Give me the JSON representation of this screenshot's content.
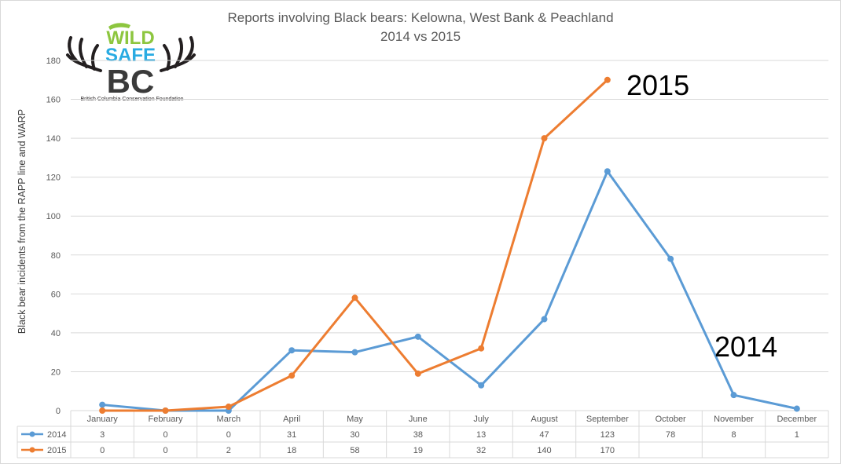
{
  "chart_data": {
    "type": "line",
    "title": "Reports involving Black bears: Kelowna, West Bank & Peachland",
    "subtitle": "2014 vs 2015",
    "xlabel": "",
    "ylabel": "Black bear incidents from the RAPP line and WARP",
    "ylim": [
      0,
      180
    ],
    "yticks": [
      0,
      20,
      40,
      60,
      80,
      100,
      120,
      140,
      160,
      180
    ],
    "grid": true,
    "categories": [
      "January",
      "February",
      "March",
      "April",
      "May",
      "June",
      "July",
      "August",
      "September",
      "October",
      "November",
      "December"
    ],
    "series": [
      {
        "name": "2014",
        "color": "#5b9bd5",
        "values": [
          3,
          0,
          0,
          31,
          30,
          38,
          13,
          47,
          123,
          78,
          8,
          1
        ]
      },
      {
        "name": "2015",
        "color": "#ed7d31",
        "values": [
          0,
          0,
          2,
          18,
          58,
          19,
          32,
          140,
          170,
          null,
          null,
          null
        ]
      }
    ],
    "table_values": [
      [
        "3",
        "0",
        "0",
        "31",
        "30",
        "38",
        "13",
        "47",
        "123",
        "78",
        "8",
        "1"
      ],
      [
        "0",
        "0",
        "2",
        "18",
        "58",
        "19",
        "32",
        "140",
        "170",
        "",
        "",
        ""
      ]
    ],
    "annotations": [
      "2015",
      "2014"
    ]
  },
  "logo": {
    "wild": "WILD",
    "safe": "SAFE",
    "bc": "BC",
    "tagline": "British Columbia Conservation Foundation"
  }
}
